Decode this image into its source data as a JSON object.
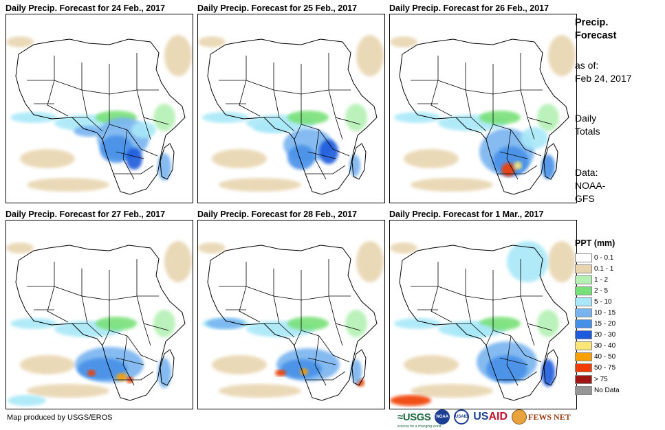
{
  "panels": [
    {
      "title": "Daily Precip. Forecast for 24 Feb., 2017"
    },
    {
      "title": "Daily Precip. Forecast for 25 Feb., 2017"
    },
    {
      "title": "Daily Precip. Forecast for 26 Feb., 2017"
    },
    {
      "title": "Daily Precip. Forecast for 27 Feb., 2017"
    },
    {
      "title": "Daily Precip. Forecast for 28 Feb., 2017"
    },
    {
      "title": "Daily Precip. Forecast for 1 Mar., 2017"
    }
  ],
  "side": {
    "title_line1": "Precip.",
    "title_line2": "Forecast",
    "asof_label": "as of:",
    "asof_date": "Feb 24, 2017",
    "daily_line1": "Daily",
    "daily_line2": "Totals",
    "data_line1": "Data:",
    "data_line2": "NOAA-",
    "data_line3": "GFS"
  },
  "legend": {
    "title": "PPT (mm)",
    "items": [
      {
        "label": "0 - 0.1",
        "color": "#ffffff"
      },
      {
        "label": "0.1 - 1",
        "color": "#e8d5b0"
      },
      {
        "label": "1 - 2",
        "color": "#b4f0b4"
      },
      {
        "label": "2 - 5",
        "color": "#78e078"
      },
      {
        "label": "5 - 10",
        "color": "#a8e8f8"
      },
      {
        "label": "10 - 15",
        "color": "#78b4f0"
      },
      {
        "label": "15 - 20",
        "color": "#4690e8"
      },
      {
        "label": "20 - 30",
        "color": "#1e5adc"
      },
      {
        "label": "30 - 40",
        "color": "#f8e678"
      },
      {
        "label": "40 - 50",
        "color": "#f8a000"
      },
      {
        "label": "50 - 75",
        "color": "#f03c00"
      },
      {
        "label": "> 75",
        "color": "#a01414"
      },
      {
        "label": "No Data",
        "color": "#969696"
      }
    ]
  },
  "footer": {
    "credit": "Map produced by USGS/EROS",
    "logo_usgs": "≈USGS",
    "logo_usgs_tag": "science for a changing world",
    "logo_noaa": "NOAA",
    "logo_usaid_seal": "USAID",
    "logo_usaid_a": "US",
    "logo_usaid_b": "AID",
    "logo_fews": "FEWS NET"
  }
}
